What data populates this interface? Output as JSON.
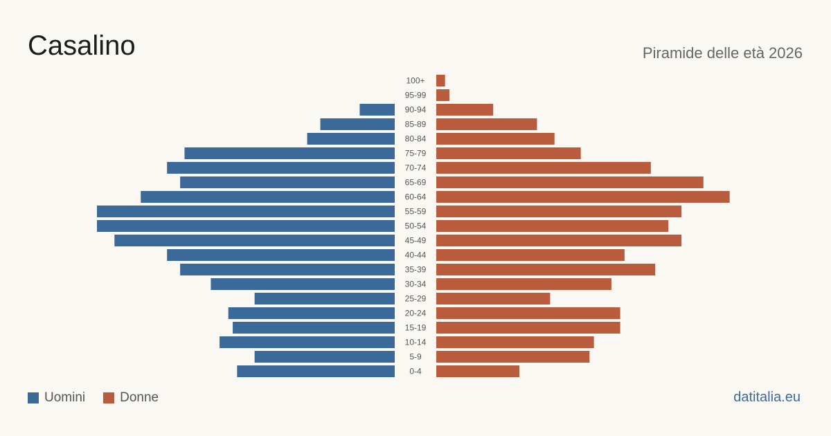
{
  "header": {
    "title": "Casalino",
    "subtitle": "Piramide delle età 2026"
  },
  "legend": {
    "men_label": "Uomini",
    "women_label": "Donne"
  },
  "footer": {
    "brand": "datitalia.eu"
  },
  "colors": {
    "men": "#3b6a9a",
    "women": "#b95c3d",
    "background": "#faf8f3",
    "tick_text": "#555555"
  },
  "chart_data": {
    "type": "bar",
    "orientation": "horizontal-pyramid",
    "categories": [
      "100+",
      "95-99",
      "90-94",
      "85-89",
      "80-84",
      "75-79",
      "70-74",
      "65-69",
      "60-64",
      "55-59",
      "50-54",
      "45-49",
      "40-44",
      "35-39",
      "30-34",
      "25-29",
      "20-24",
      "15-19",
      "10-14",
      "5-9",
      "0-4"
    ],
    "series": [
      {
        "name": "Uomini",
        "values": [
          0,
          0,
          8,
          17,
          20,
          48,
          52,
          49,
          58,
          68,
          68,
          64,
          52,
          49,
          42,
          32,
          38,
          37,
          40,
          32,
          36
        ]
      },
      {
        "name": "Donne",
        "values": [
          2,
          3,
          13,
          23,
          27,
          33,
          49,
          61,
          67,
          56,
          53,
          56,
          43,
          50,
          40,
          26,
          42,
          42,
          36,
          35,
          19
        ]
      }
    ],
    "xlim": [
      0,
      68
    ],
    "legend_position": "bottom-left",
    "grid": false
  }
}
